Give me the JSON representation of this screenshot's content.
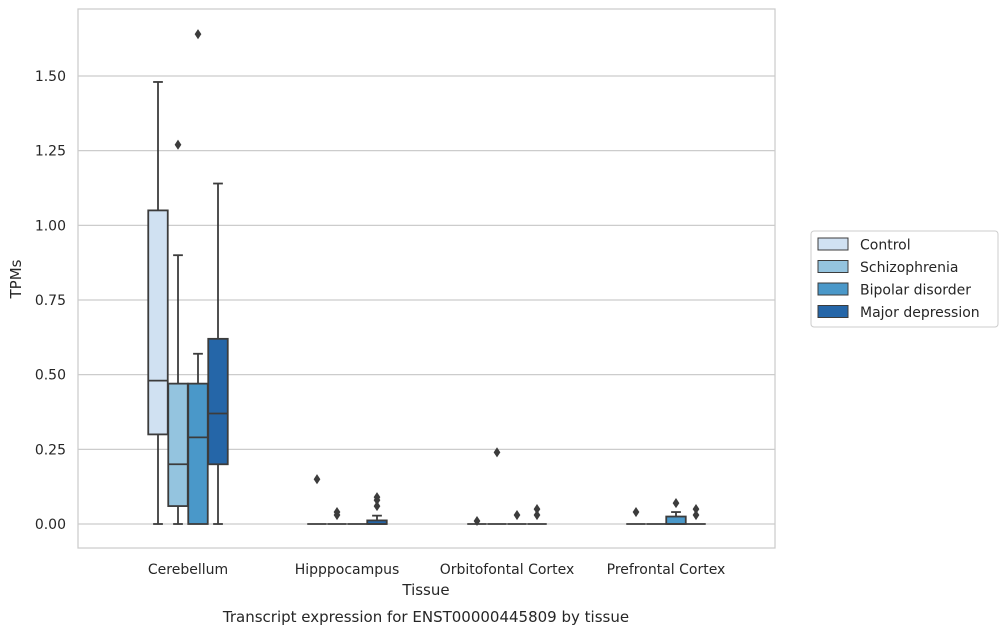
{
  "chart_data": {
    "type": "box",
    "title": "",
    "caption": "Transcript expression for ENST00000445809 by tissue",
    "xlabel": "Tissue",
    "ylabel": "TPMs",
    "ylim": [
      -0.08,
      1.73
    ],
    "yticks": [
      "0.00",
      "0.25",
      "0.50",
      "0.75",
      "1.00",
      "1.25",
      "1.50"
    ],
    "ytick_values": [
      0,
      0.25,
      0.5,
      0.75,
      1.0,
      1.25,
      1.5
    ],
    "grid": "horizontal",
    "legend_position": "right",
    "categories": [
      "Cerebellum",
      "Hipppocampus",
      "Orbitofontal Cortex",
      "Prefrontal Cortex"
    ],
    "series": [
      {
        "name": "Control",
        "color": "#d0e1f2",
        "boxes": [
          {
            "whislo": 0.0,
            "q1": 0.3,
            "med": 0.48,
            "q3": 1.05,
            "whishi": 1.48,
            "fliers": []
          },
          {
            "whislo": 0.0,
            "q1": 0.0,
            "med": 0.0,
            "q3": 0.0,
            "whishi": 0.0,
            "fliers": [
              0.15
            ]
          },
          {
            "whislo": 0.0,
            "q1": 0.0,
            "med": 0.0,
            "q3": 0.0,
            "whishi": 0.0,
            "fliers": [
              0.01
            ]
          },
          {
            "whislo": 0.0,
            "q1": 0.0,
            "med": 0.0,
            "q3": 0.0,
            "whishi": 0.0,
            "fliers": [
              0.04
            ]
          }
        ]
      },
      {
        "name": "Schizophrenia",
        "color": "#94c4df",
        "boxes": [
          {
            "whislo": 0.0,
            "q1": 0.06,
            "med": 0.2,
            "q3": 0.47,
            "whishi": 0.9,
            "fliers": [
              1.27
            ]
          },
          {
            "whislo": 0.0,
            "q1": 0.0,
            "med": 0.0,
            "q3": 0.0,
            "whishi": 0.0,
            "fliers": [
              0.03,
              0.04
            ]
          },
          {
            "whislo": 0.0,
            "q1": 0.0,
            "med": 0.0,
            "q3": 0.0,
            "whishi": 0.0,
            "fliers": [
              0.24
            ]
          },
          {
            "whislo": 0.0,
            "q1": 0.0,
            "med": 0.0,
            "q3": 0.0,
            "whishi": 0.0,
            "fliers": []
          }
        ]
      },
      {
        "name": "Bipolar disorder",
        "color": "#4a98c9",
        "boxes": [
          {
            "whislo": 0.0,
            "q1": 0.0,
            "med": 0.29,
            "q3": 0.47,
            "whishi": 0.57,
            "fliers": [
              1.64
            ]
          },
          {
            "whislo": 0.0,
            "q1": 0.0,
            "med": 0.0,
            "q3": 0.0,
            "whishi": 0.0,
            "fliers": []
          },
          {
            "whislo": 0.0,
            "q1": 0.0,
            "med": 0.0,
            "q3": 0.0,
            "whishi": 0.0,
            "fliers": [
              0.03
            ]
          },
          {
            "whislo": 0.0,
            "q1": 0.0,
            "med": 0.0,
            "q3": 0.025,
            "whishi": 0.04,
            "fliers": [
              0.07
            ]
          }
        ]
      },
      {
        "name": "Major depression",
        "color": "#2566a8",
        "boxes": [
          {
            "whislo": 0.0,
            "q1": 0.2,
            "med": 0.37,
            "q3": 0.62,
            "whishi": 1.14,
            "fliers": []
          },
          {
            "whislo": 0.0,
            "q1": 0.0,
            "med": 0.0,
            "q3": 0.012,
            "whishi": 0.028,
            "fliers": [
              0.06,
              0.08,
              0.09
            ]
          },
          {
            "whislo": 0.0,
            "q1": 0.0,
            "med": 0.0,
            "q3": 0.0,
            "whishi": 0.0,
            "fliers": [
              0.03,
              0.05
            ]
          },
          {
            "whislo": 0.0,
            "q1": 0.0,
            "med": 0.0,
            "q3": 0.0,
            "whishi": 0.0,
            "fliers": [
              0.03,
              0.05
            ]
          }
        ]
      }
    ],
    "outlier_series_offsets_note": ""
  }
}
